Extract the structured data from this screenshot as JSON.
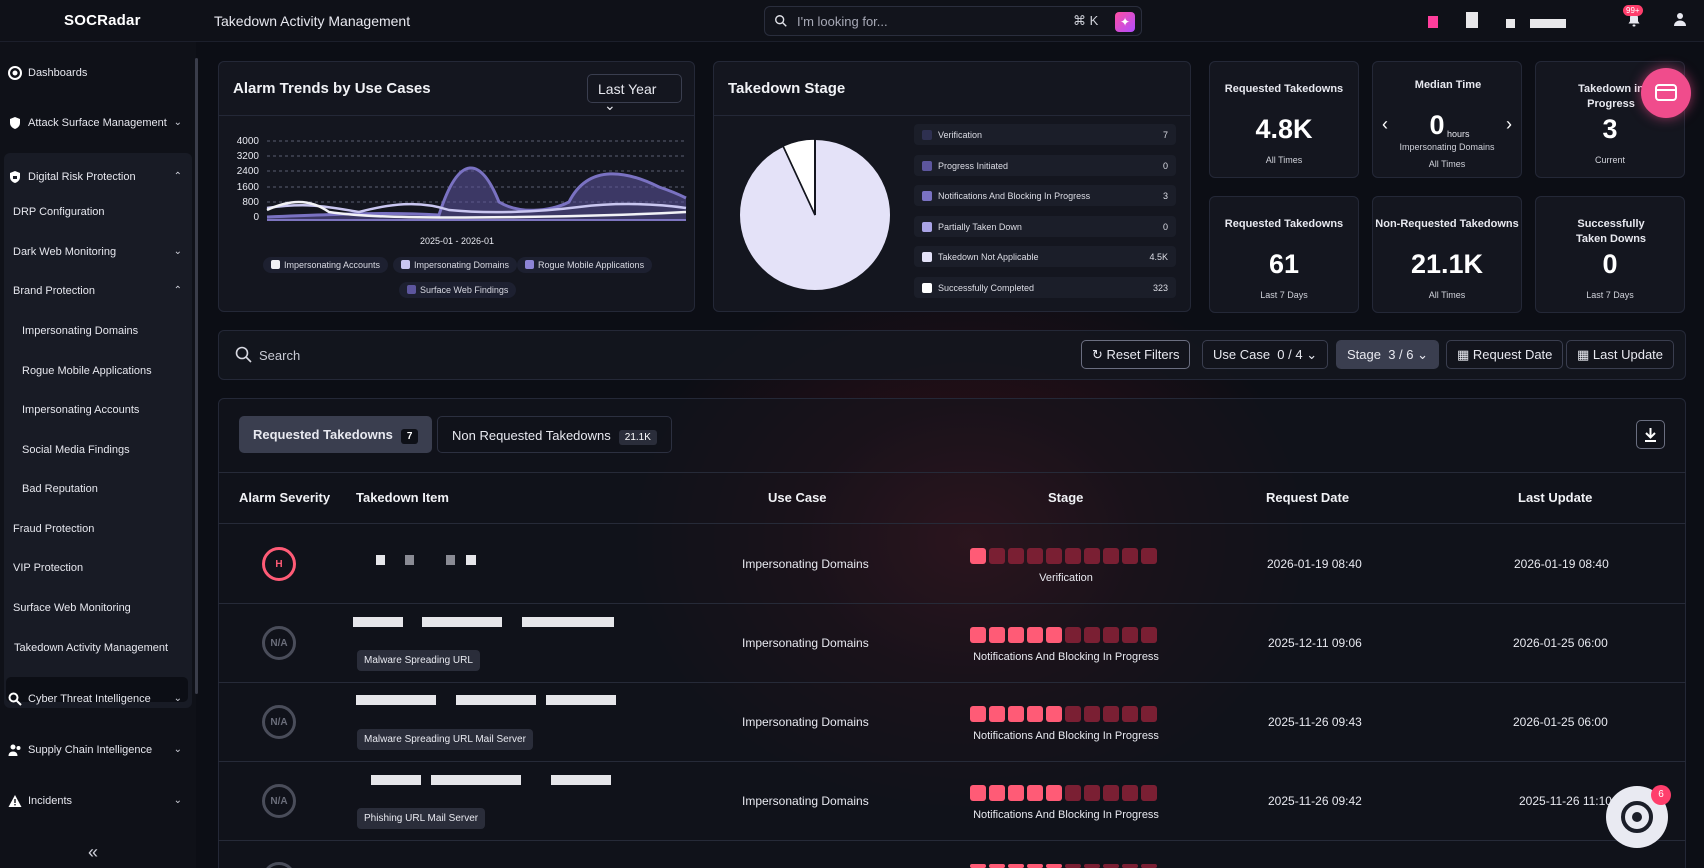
{
  "header": {
    "logo": "SOCRadar",
    "page_title": "Takedown Activity Management",
    "search_placeholder": "I'm looking for...",
    "search_shortcut": "⌘ K",
    "notification_count": "99+"
  },
  "sidebar": {
    "top_items": [
      {
        "label": "Dashboards"
      },
      {
        "label": "Attack Surface Management"
      },
      {
        "label": "Digital Risk Protection"
      }
    ],
    "drp_items": [
      {
        "label": "DRP Configuration"
      },
      {
        "label": "Dark Web Monitoring"
      },
      {
        "label": "Brand Protection"
      },
      {
        "label": "Impersonating Domains"
      },
      {
        "label": "Rogue Mobile Applications"
      },
      {
        "label": "Impersonating Accounts"
      },
      {
        "label": "Social Media Findings"
      },
      {
        "label": "Bad Reputation"
      },
      {
        "label": "Fraud Protection"
      },
      {
        "label": "VIP Protection"
      },
      {
        "label": "Surface Web Monitoring"
      },
      {
        "label": "Takedown Activity Management"
      }
    ],
    "bottom_items": [
      {
        "label": "Cyber Threat Intelligence"
      },
      {
        "label": "Supply Chain Intelligence"
      },
      {
        "label": "Incidents"
      }
    ],
    "collapse_label": "«"
  },
  "alarm_trends": {
    "title": "Alarm Trends by Use Cases",
    "period": "Last Year",
    "y_ticks": [
      "4000",
      "3200",
      "2400",
      "1600",
      "800",
      "0"
    ],
    "x_label": "2025-01 - 2026-01",
    "legend": [
      {
        "label": "Impersonating Accounts",
        "color": "#f2f2f6"
      },
      {
        "label": "Impersonating Domains",
        "color": "#c9c6f0"
      },
      {
        "label": "Rogue Mobile Applications",
        "color": "#8d84d6"
      },
      {
        "label": "Surface Web Findings",
        "color": "#5d569e"
      }
    ]
  },
  "takedown_stage": {
    "title": "Takedown Stage",
    "stages": [
      {
        "label": "Verification",
        "value": "7",
        "color": "#2e3050"
      },
      {
        "label": "Progress Initiated",
        "value": "0",
        "color": "#5d569e"
      },
      {
        "label": "Notifications And Blocking In Progress",
        "value": "3",
        "color": "#7a72c2"
      },
      {
        "label": "Partially Taken Down",
        "value": "0",
        "color": "#aaa4e6"
      },
      {
        "label": "Takedown Not Applicable",
        "value": "4.5K",
        "color": "#e4e2f8"
      },
      {
        "label": "Successfully Completed",
        "value": "323",
        "color": "#ffffff"
      }
    ]
  },
  "stats": [
    {
      "title": "Requested Takedowns",
      "value": "4.8K",
      "sub": "All Times"
    },
    {
      "title": "Median Time",
      "value": "0",
      "unit": "hours",
      "note": "Impersonating Domains",
      "sub": "All Times"
    },
    {
      "title": "Takedown in Progress",
      "value": "3",
      "sub": "Current"
    },
    {
      "title": "Requested Takedowns",
      "value": "61",
      "sub": "Last 7 Days"
    },
    {
      "title": "Non-Requested Takedowns",
      "value": "21.1K",
      "sub": "All Times"
    },
    {
      "title": "Successfully Taken Downs",
      "value": "0",
      "sub": "Last 7 Days"
    }
  ],
  "filters": {
    "search_placeholder": "Search",
    "reset": "Reset Filters",
    "use_case": "Use Case  0 / 4",
    "stage": "Stage  3 / 6",
    "request_date": "Request Date",
    "last_update": "Last Update"
  },
  "tabs": [
    {
      "label": "Requested Takedowns",
      "count": "7"
    },
    {
      "label": "Non Requested Takedowns",
      "count": "21.1K"
    }
  ],
  "table": {
    "headers": [
      "Alarm Severity",
      "Takedown Item",
      "Use Case",
      "Stage",
      "Request Date",
      "Last Update"
    ],
    "rows": [
      {
        "severity": "H",
        "tag": "",
        "use_case": "Impersonating Domains",
        "stage_level": 1,
        "stage": "Verification",
        "request_date": "2026-01-19 08:40",
        "last_update": "2026-01-19 08:40"
      },
      {
        "severity": "N/A",
        "tag": "Malware Spreading URL",
        "use_case": "Impersonating Domains",
        "stage_level": 5,
        "stage": "Notifications And Blocking In Progress",
        "request_date": "2025-12-11 09:06",
        "last_update": "2026-01-25 06:00"
      },
      {
        "severity": "N/A",
        "tag": "Malware Spreading URL Mail Server",
        "use_case": "Impersonating Domains",
        "stage_level": 5,
        "stage": "Notifications And Blocking In Progress",
        "request_date": "2025-11-26 09:43",
        "last_update": "2026-01-25 06:00"
      },
      {
        "severity": "N/A",
        "tag": "Phishing URL Mail Server",
        "use_case": "Impersonating Domains",
        "stage_level": 5,
        "stage": "Notifications And Blocking In Progress",
        "request_date": "2025-11-26 09:42",
        "last_update": "2025-11-26 11:10"
      }
    ]
  },
  "chat_badge": "6"
}
